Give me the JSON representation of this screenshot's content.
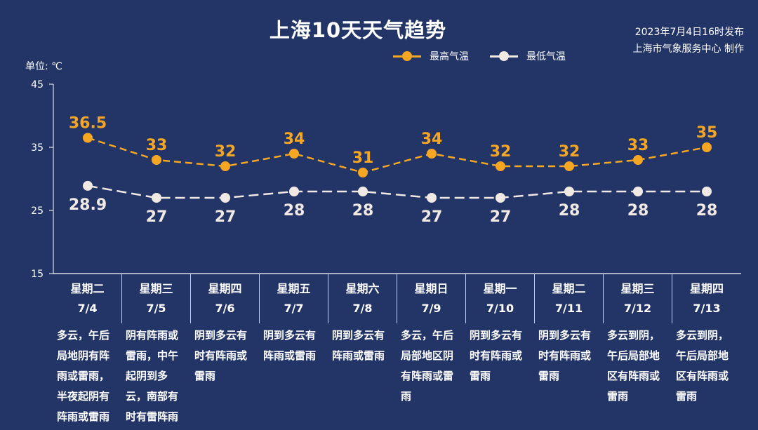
{
  "header": {
    "title": "上海10天天气趋势",
    "publish_time": "2023年7月4日16时发布",
    "publisher": "上海市气象服务中心 制作"
  },
  "colors": {
    "high": "#F5A623",
    "low": "#F1EAE4",
    "background": "#233466"
  },
  "chart_data": {
    "type": "line",
    "title": "上海10天天气趋势",
    "ylabel": "单位: ℃",
    "ylim": [
      15,
      45
    ],
    "yticks": [
      "15",
      "25",
      "35",
      "45"
    ],
    "categories": [
      "7/4",
      "7/5",
      "7/6",
      "7/7",
      "7/8",
      "7/9",
      "7/10",
      "7/11",
      "7/12",
      "7/13"
    ],
    "series": [
      {
        "name": "最高气温",
        "values": [
          36.5,
          33,
          32,
          34,
          31,
          34,
          32,
          32,
          33,
          35
        ],
        "labels": [
          "36.5",
          "33",
          "32",
          "34",
          "31",
          "34",
          "32",
          "32",
          "33",
          "35"
        ]
      },
      {
        "name": "最低气温",
        "values": [
          28.9,
          27,
          27,
          28,
          28,
          27,
          27,
          28,
          28,
          28
        ],
        "labels": [
          "28.9",
          "27",
          "27",
          "28",
          "28",
          "27",
          "27",
          "28",
          "28",
          "28"
        ]
      }
    ],
    "legend_position": "top-right",
    "grid": false
  },
  "days": [
    {
      "weekday": "星期二",
      "date": "7/4",
      "desc": "多云，午后局地阴有阵雨或雷雨，半夜起阴有阵雨或雷雨"
    },
    {
      "weekday": "星期三",
      "date": "7/5",
      "desc": "阴有阵雨或雷雨，中午起阴到多云，南部有时有雷阵雨"
    },
    {
      "weekday": "星期四",
      "date": "7/6",
      "desc": "阴到多云有时有阵雨或雷雨"
    },
    {
      "weekday": "星期五",
      "date": "7/7",
      "desc": "阴到多云有阵雨或雷雨"
    },
    {
      "weekday": "星期六",
      "date": "7/8",
      "desc": "阴到多云有阵雨或雷雨"
    },
    {
      "weekday": "星期日",
      "date": "7/9",
      "desc": "多云，午后局部地区阴有阵雨或雷雨"
    },
    {
      "weekday": "星期一",
      "date": "7/10",
      "desc": "阴到多云有时有阵雨或雷雨"
    },
    {
      "weekday": "星期二",
      "date": "7/11",
      "desc": "阴到多云有时有阵雨或雷雨"
    },
    {
      "weekday": "星期三",
      "date": "7/12",
      "desc": "多云到阴，午后局部地区有阵雨或雷雨"
    },
    {
      "weekday": "星期四",
      "date": "7/13",
      "desc": "多云到阴，午后局部地区有阵雨或雷雨"
    }
  ]
}
